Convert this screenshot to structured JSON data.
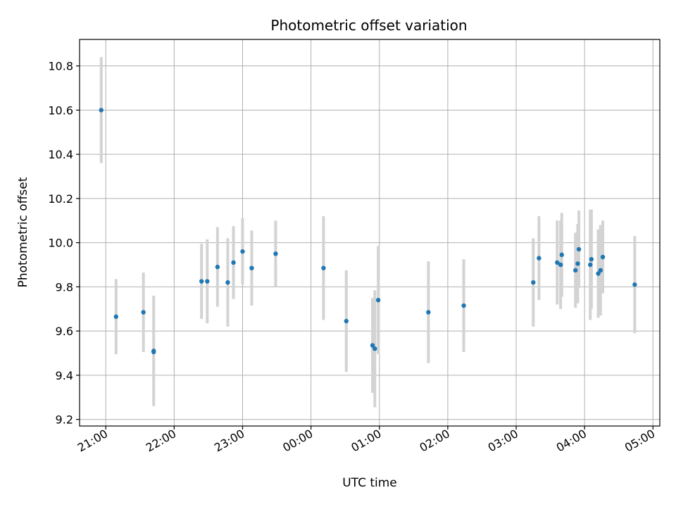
{
  "chart_data": {
    "type": "scatter",
    "title": "Photometric offset variation",
    "xlabel": "UTC time",
    "ylabel": "Photometric offset",
    "grid": true,
    "colors": {
      "point": "#1f77b4",
      "errorbar": "#d3d3d3"
    },
    "xlim": [
      "20:37",
      "05:06"
    ],
    "ylim": [
      9.17,
      10.92
    ],
    "xticks": [
      "21:00",
      "22:00",
      "23:00",
      "00:00",
      "01:00",
      "02:00",
      "03:00",
      "04:00",
      "05:00"
    ],
    "yticks": [
      "9.2",
      "9.4",
      "9.6",
      "9.8",
      "10.0",
      "10.2",
      "10.4",
      "10.6",
      "10.8"
    ],
    "points": [
      {
        "time": "20:56",
        "y": 10.6,
        "err": 0.24
      },
      {
        "time": "21:09",
        "y": 9.665,
        "err": 0.17
      },
      {
        "time": "21:33",
        "y": 9.685,
        "err": 0.18
      },
      {
        "time": "21:42",
        "y": 9.51,
        "err": 0.25
      },
      {
        "time": "21:42",
        "y": 9.505,
        "err": 0.0
      },
      {
        "time": "22:24",
        "y": 9.825,
        "err": 0.17
      },
      {
        "time": "22:29",
        "y": 9.825,
        "err": 0.19
      },
      {
        "time": "22:38",
        "y": 9.89,
        "err": 0.18
      },
      {
        "time": "22:47",
        "y": 9.82,
        "err": 0.2
      },
      {
        "time": "22:52",
        "y": 9.91,
        "err": 0.165
      },
      {
        "time": "23:00",
        "y": 9.96,
        "err": 0.15
      },
      {
        "time": "23:08",
        "y": 9.885,
        "err": 0.17
      },
      {
        "time": "23:29",
        "y": 9.95,
        "err": 0.15
      },
      {
        "time": "00:11",
        "y": 9.885,
        "err": 0.235
      },
      {
        "time": "00:31",
        "y": 9.645,
        "err": 0.23
      },
      {
        "time": "00:54",
        "y": 9.535,
        "err": 0.215
      },
      {
        "time": "00:56",
        "y": 9.52,
        "err": 0.265
      },
      {
        "time": "00:59",
        "y": 9.74,
        "err": 0.245
      },
      {
        "time": "01:43",
        "y": 9.685,
        "err": 0.23
      },
      {
        "time": "02:14",
        "y": 9.715,
        "err": 0.21
      },
      {
        "time": "03:15",
        "y": 9.82,
        "err": 0.2
      },
      {
        "time": "03:20",
        "y": 9.93,
        "err": 0.19
      },
      {
        "time": "03:36",
        "y": 9.91,
        "err": 0.19
      },
      {
        "time": "03:39",
        "y": 9.9,
        "err": 0.2
      },
      {
        "time": "03:40",
        "y": 9.945,
        "err": 0.19
      },
      {
        "time": "03:52",
        "y": 9.875,
        "err": 0.17
      },
      {
        "time": "03:54",
        "y": 9.905,
        "err": 0.18
      },
      {
        "time": "03:55",
        "y": 9.97,
        "err": 0.175
      },
      {
        "time": "04:05",
        "y": 9.9,
        "err": 0.25
      },
      {
        "time": "04:06",
        "y": 9.925,
        "err": 0.225
      },
      {
        "time": "04:12",
        "y": 9.86,
        "err": 0.2
      },
      {
        "time": "04:14",
        "y": 9.875,
        "err": 0.205
      },
      {
        "time": "04:16",
        "y": 9.935,
        "err": 0.165
      },
      {
        "time": "04:44",
        "y": 9.81,
        "err": 0.22
      }
    ]
  }
}
